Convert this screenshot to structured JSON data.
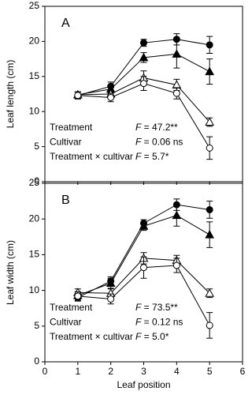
{
  "chart_data": [
    {
      "type": "line",
      "title": "A",
      "ylabel": "Leaf length (cm)",
      "xlim": [
        0,
        6
      ],
      "xticks": [
        0,
        1,
        2,
        3,
        4,
        5,
        6
      ],
      "ylim": [
        0,
        25
      ],
      "yticks": [
        0,
        5,
        10,
        15,
        20,
        25
      ],
      "x": [
        1,
        2,
        3,
        4,
        5
      ],
      "series": [
        {
          "color": "#000000",
          "marker": "circle",
          "filled": true,
          "values": [
            12.3,
            13.6,
            19.8,
            20.3,
            19.5
          ],
          "errors": [
            0.5,
            0.6,
            0.5,
            0.8,
            1.2
          ]
        },
        {
          "color": "#000000",
          "marker": "triangle",
          "filled": true,
          "values": [
            12.4,
            13.2,
            17.7,
            18.2,
            15.7
          ],
          "errors": [
            0.4,
            0.5,
            0.7,
            2.0,
            1.8
          ]
        },
        {
          "color": "#000000",
          "marker": "triangle",
          "filled": false,
          "values": [
            12.4,
            12.5,
            14.8,
            13.8,
            8.5
          ],
          "errors": [
            0.4,
            0.5,
            1.0,
            0.8,
            0.6
          ]
        },
        {
          "color": "#000000",
          "marker": "circle",
          "filled": false,
          "values": [
            12.3,
            12.0,
            14.0,
            12.6,
            4.8
          ],
          "errors": [
            0.5,
            0.6,
            1.0,
            0.8,
            1.6
          ]
        }
      ],
      "annotations": [
        {
          "term": "Treatment",
          "symbol": "F",
          "result": " = 47.2**"
        },
        {
          "term": "Cultivar",
          "symbol": "F",
          "result": " = 0.06 ns"
        },
        {
          "term": "Treatment × cultivar",
          "symbol": "F",
          "result": " = 5.7*"
        }
      ]
    },
    {
      "type": "line",
      "title": "B",
      "ylabel": "Leaf width (cm)",
      "xlabel": "Leaf position",
      "xlim": [
        0,
        6
      ],
      "xticks": [
        0,
        1,
        2,
        3,
        4,
        5,
        6
      ],
      "ylim": [
        0,
        25
      ],
      "yticks": [
        0,
        5,
        10,
        15,
        20,
        25
      ],
      "x": [
        1,
        2,
        3,
        4,
        5
      ],
      "series": [
        {
          "color": "#000000",
          "marker": "circle",
          "filled": true,
          "values": [
            9.0,
            11.3,
            19.4,
            22.0,
            21.3
          ],
          "errors": [
            0.5,
            0.6,
            0.5,
            0.8,
            1.2
          ]
        },
        {
          "color": "#000000",
          "marker": "triangle",
          "filled": true,
          "values": [
            9.3,
            11.0,
            19.0,
            20.5,
            17.8
          ],
          "errors": [
            0.5,
            0.7,
            0.6,
            1.5,
            1.8
          ]
        },
        {
          "color": "#000000",
          "marker": "triangle",
          "filled": false,
          "values": [
            9.7,
            9.6,
            14.5,
            14.2,
            9.6
          ],
          "errors": [
            0.5,
            0.6,
            0.8,
            0.7,
            0.6
          ]
        },
        {
          "color": "#000000",
          "marker": "circle",
          "filled": false,
          "values": [
            9.2,
            8.8,
            13.2,
            13.5,
            5.1
          ],
          "errors": [
            0.6,
            0.7,
            1.5,
            1.0,
            1.8
          ]
        }
      ],
      "annotations": [
        {
          "term": "Treatment",
          "symbol": "F",
          "result": " = 73.5**"
        },
        {
          "term": "Cultivar",
          "symbol": "F",
          "result": " = 0.12 ns"
        },
        {
          "term": "Treatment × cultivar",
          "symbol": "F",
          "result": " = 5.0*"
        }
      ]
    }
  ]
}
